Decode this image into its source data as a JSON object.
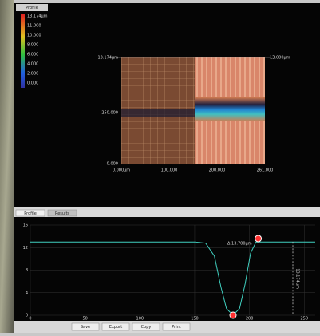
{
  "top_panel": {
    "tab": "Profile",
    "colorbar": {
      "labels": [
        "13.174µm",
        "11.000",
        "10.000",
        "8.000",
        "6.000",
        "4.000",
        "2.000",
        "0.000"
      ]
    },
    "axis_labels": {
      "top_left": "13.174µm",
      "middle_left": "250.000",
      "bottom_left": "0.000",
      "top_right": "13.000µm"
    },
    "x_labels": [
      "0.000µm",
      "100.000",
      "200.000",
      "261.000"
    ]
  },
  "bottom_panel": {
    "tabs": [
      "Profile",
      "Results"
    ],
    "profile": {
      "x": [
        0,
        150,
        160,
        168,
        174,
        179,
        185,
        191,
        196,
        201,
        206,
        260
      ],
      "y": [
        13,
        13,
        12.8,
        10.5,
        5,
        1.2,
        0,
        1.2,
        5.5,
        11,
        13,
        13
      ],
      "xlim": [
        0,
        260
      ],
      "ylim": [
        0,
        16
      ],
      "yticks": [
        0,
        4,
        8,
        12,
        16
      ],
      "xticks": [
        0,
        50,
        100,
        150,
        200,
        250
      ]
    },
    "markers": [
      {
        "x": 185,
        "y": 0
      },
      {
        "x": 208,
        "y": 13.6
      }
    ],
    "delta_label": "Δ 13.700µm",
    "height_label": "13.174µm"
  },
  "toolbar": {
    "buttons": [
      "Save",
      "Export",
      "Copy",
      "Print"
    ]
  }
}
